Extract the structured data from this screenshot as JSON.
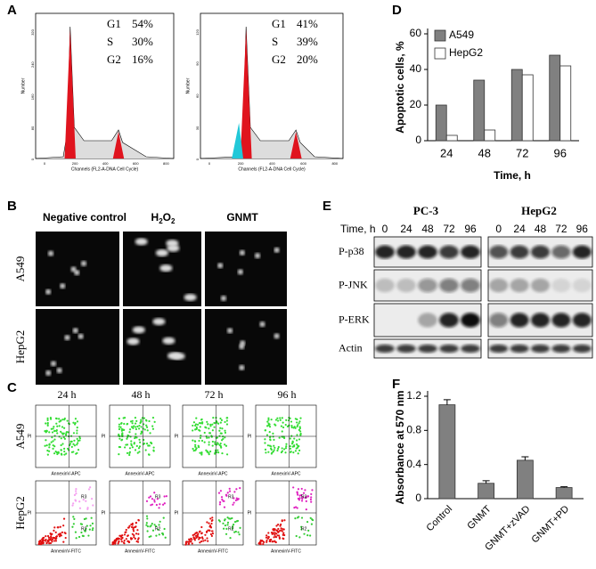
{
  "panels": {
    "letters": [
      "A",
      "B",
      "C",
      "D",
      "E",
      "F"
    ],
    "a": {
      "stats": [
        [
          [
            "G1",
            "54%"
          ],
          [
            "S",
            "30%"
          ],
          [
            "G2",
            "16%"
          ]
        ],
        [
          [
            "G1",
            "41%"
          ],
          [
            "S",
            "39%"
          ],
          [
            "G2",
            "20%"
          ]
        ]
      ],
      "xlabel": "Channels (FL2-A-DNA Cell Cycle)",
      "ylabel": "Number",
      "xticks": [
        "0",
        "200",
        "400",
        "600",
        "800"
      ],
      "yticks": [
        [
          "0",
          "80",
          "160",
          "240",
          "320"
        ],
        [
          "0",
          "30",
          "60",
          "90",
          "120"
        ]
      ]
    },
    "b": {
      "columns": [
        "Negative control",
        "GNMT"
      ],
      "h2o2": [
        "H",
        "2",
        "O",
        "2"
      ],
      "rows": [
        "A549",
        "HepG2"
      ]
    },
    "c": {
      "columns": [
        "24 h",
        "48 h",
        "72 h",
        "96 h"
      ],
      "rows": [
        "A549",
        "HepG2"
      ],
      "xlabels": [
        "AnnexinV-APC",
        "AnnexinV-FITC"
      ],
      "ylabel": "PI",
      "regions": [
        "R2",
        "R3"
      ]
    },
    "e": {
      "groups": [
        "PC-3",
        "HepG2"
      ],
      "time": "Time, h",
      "lanes": [
        "0",
        "24",
        "48",
        "72",
        "96"
      ],
      "rows": [
        "P-p38",
        "P-JNK",
        "P-ERK",
        "Actin"
      ]
    }
  },
  "chart_data": [
    {
      "type": "bar",
      "categories": [
        "24",
        "48",
        "72",
        "96"
      ],
      "ylabel": "Apoptotic cells, %",
      "xlabel": "Time, h",
      "series": [
        {
          "name": "A549",
          "color": "#808080",
          "values": [
            20,
            34,
            40,
            48
          ]
        },
        {
          "name": "HepG2",
          "color": "#ffffff",
          "values": [
            3,
            6,
            37,
            42
          ]
        }
      ],
      "ylim": [
        0,
        60
      ],
      "yticks": [
        0,
        20,
        40,
        60
      ],
      "legend": "top-left"
    },
    {
      "type": "bar",
      "categories": [
        "Control",
        "GNMT",
        "GNMT+zVAD",
        "GNMT+PD"
      ],
      "ylabel": "Absorbance at 570 nm",
      "values": [
        1.1,
        0.18,
        0.45,
        0.13
      ],
      "errors": [
        0.06,
        0.03,
        0.04,
        0.01
      ],
      "color": "#808080",
      "ylim": [
        0,
        1.2
      ],
      "yticks": [
        0,
        0.4,
        0.8,
        1.2
      ]
    }
  ]
}
